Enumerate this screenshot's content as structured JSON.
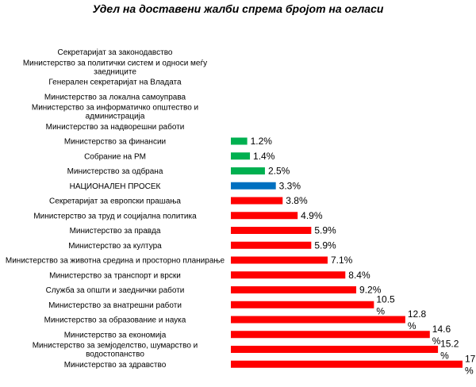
{
  "chart_data": {
    "type": "bar",
    "orientation": "horizontal",
    "title": "Удел на доставени жалби спрема бројот на огласи",
    "xlabel": "",
    "ylabel": "",
    "grid": false,
    "legend": "none",
    "value_unit": "%",
    "categories": [
      [
        "Секретаријат за законодавство"
      ],
      [
        "Министерство за политички систем и односи меѓу",
        "заедниците"
      ],
      [
        "Генерален секретаријат на Владата"
      ],
      [
        "Министерство за локална самоуправа"
      ],
      [
        "Министерство за информатичко општество и",
        "администрација"
      ],
      [
        "Министерство за надворешни работи"
      ],
      [
        "Министерство за финансии"
      ],
      [
        "Собрание на РМ"
      ],
      [
        "Министерство за одбрана"
      ],
      [
        "НАЦИОНАЛЕН ПРОСЕК"
      ],
      [
        "Секретаријат за европски прашања"
      ],
      [
        "Министерство за труд и социјална политика"
      ],
      [
        "Министерство за правда"
      ],
      [
        "Министерство за култура"
      ],
      [
        "Министерство за животна средина и просторно планирање"
      ],
      [
        "Министерство за транспорт и врски"
      ],
      [
        "Служба за општи и заеднички работи"
      ],
      [
        "Министерство за внатрешни работи"
      ],
      [
        "Министерство за образование и наука"
      ],
      [
        "Министерство за економија"
      ],
      [
        "Министерство за земјоделство, шумарство и",
        "водостопанство"
      ],
      [
        "Министерство за здравство"
      ]
    ],
    "values": [
      0,
      0,
      0,
      0,
      0,
      0,
      1.2,
      1.4,
      2.5,
      3.3,
      3.8,
      4.9,
      5.9,
      5.9,
      7.1,
      8.4,
      9.2,
      10.5,
      12.8,
      14.6,
      15.2,
      17.0
    ],
    "value_labels": [
      "",
      "",
      "",
      "",
      "",
      "",
      "1.2%",
      "1.4%",
      "2.5%",
      "3.3%",
      "3.8%",
      "4.9%",
      "5.9%",
      "5.9%",
      "7.1%",
      "8.4%",
      "9.2%",
      "10.5|%",
      "12.8|%",
      "14.6|%",
      "15.2|%",
      "17.0|%"
    ],
    "xlim": [
      0,
      17
    ],
    "colors": {
      "below_average": "#00b050",
      "average": "#0070c0",
      "above_average": "#ff0000"
    },
    "bar_color_groups": [
      "",
      "",
      "",
      "",
      "",
      "",
      "below_average",
      "below_average",
      "below_average",
      "average",
      "above_average",
      "above_average",
      "above_average",
      "above_average",
      "above_average",
      "above_average",
      "above_average",
      "above_average",
      "above_average",
      "above_average",
      "above_average",
      "above_average"
    ]
  }
}
